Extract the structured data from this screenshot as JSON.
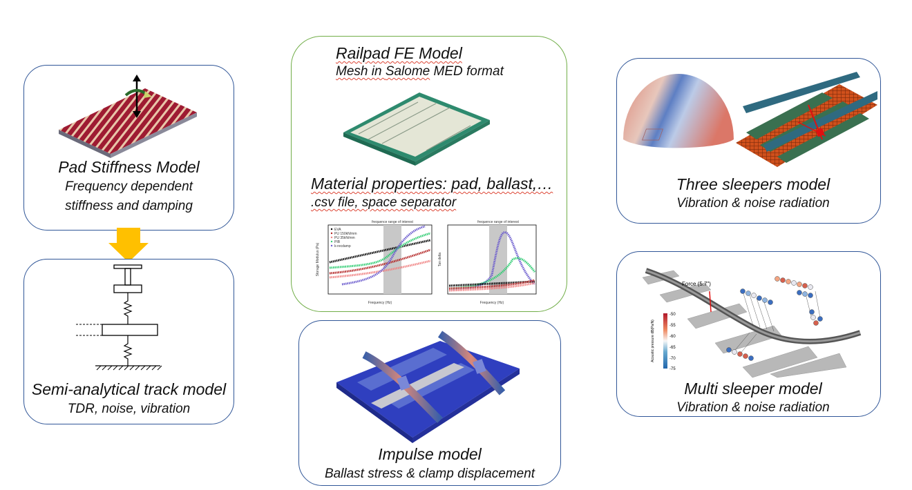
{
  "pad_stiffness": {
    "title": "Pad Stiffness Model",
    "line1": "Frequency dependent",
    "line2": "stiffness and damping"
  },
  "semi_analytical": {
    "title": "Semi-analytical track model",
    "subtitle": "TDR, noise, vibration"
  },
  "railpad": {
    "title": "Railpad FE Model",
    "mesh_prefix": "Mesh in ",
    "mesh_salome": "Salome",
    "mesh_suffix": " MED format",
    "material": "Material properties: pad, ballast,…",
    "csv": ".csv file, space separator"
  },
  "charts": {
    "left": {
      "ylabel": "Storage Modulus (Pa)",
      "xlabel": "Frequency (Hz)",
      "band_label": "frequence range of interest",
      "legend": [
        "EVA",
        "PU 150kN/mm",
        "PU 35kN/mm",
        "PIB",
        "k-recdamp"
      ]
    },
    "right": {
      "ylabel": "Tan delta",
      "xlabel": "Frequency (Hz)",
      "band_label": "frequence range of interest"
    }
  },
  "impulse": {
    "title": "Impulse model",
    "subtitle": "Ballast stress & clamp displacement"
  },
  "three_sleepers": {
    "title": "Three sleepers model",
    "subtitle": "Vibration & noise radiation"
  },
  "multi_sleeper": {
    "title": "Multi sleeper model",
    "subtitle": "Vibration & noise radiation",
    "force_label": "Force (5.7\")",
    "colorbar_label": "Acoustic pressure dB(Pa/N)",
    "colorbar_ticks": [
      "-50",
      "-55",
      "-60",
      "-65",
      "-70",
      "-75"
    ]
  },
  "colors": {
    "box_border": "#2f5597",
    "green_border": "#70ad47",
    "arrow": "#ffc000"
  }
}
